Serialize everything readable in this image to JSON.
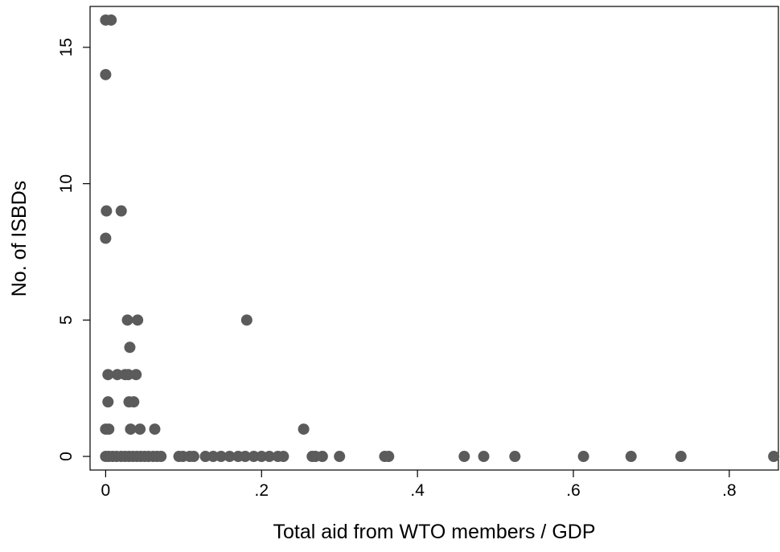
{
  "chart_data": {
    "type": "scatter",
    "x_label": "Total aid from WTO members / GDP",
    "y_label": "No. of ISBDs",
    "color": "#5b5b5b",
    "xlim": [
      -0.02,
      0.863
    ],
    "ylim": [
      -0.5,
      16.5
    ],
    "xticks": [
      0,
      {
        "value": 0.2,
        "label": ".2"
      },
      {
        "value": 0.4,
        "label": ".4"
      },
      {
        "value": 0.6,
        "label": ".6"
      },
      {
        "value": 0.8,
        "label": ".8"
      }
    ],
    "yticks": [
      0,
      5,
      10,
      15
    ],
    "x": [
      0.0,
      0.007,
      0.0,
      0.001,
      0.02,
      0.0,
      0.028,
      0.041,
      0.181,
      0.031,
      0.003,
      0.015,
      0.025,
      0.029,
      0.039,
      0.003,
      0.03,
      0.036,
      0.0,
      0.004,
      0.032,
      0.044,
      0.063,
      0.254,
      0.0,
      0.004,
      0.009,
      0.014,
      0.02,
      0.025,
      0.03,
      0.035,
      0.04,
      0.045,
      0.05,
      0.055,
      0.061,
      0.066,
      0.071,
      0.094,
      0.099,
      0.108,
      0.113,
      0.128,
      0.138,
      0.148,
      0.159,
      0.17,
      0.179,
      0.19,
      0.2,
      0.21,
      0.221,
      0.228,
      0.265,
      0.269,
      0.278,
      0.3,
      0.358,
      0.363,
      0.46,
      0.485,
      0.525,
      0.613,
      0.674,
      0.738,
      0.857
    ],
    "values": [
      16,
      16,
      14,
      9,
      9,
      8,
      5,
      5,
      5,
      4,
      3,
      3,
      3,
      3,
      3,
      2,
      2,
      2,
      1,
      1,
      1,
      1,
      1,
      1,
      0,
      0,
      0,
      0,
      0,
      0,
      0,
      0,
      0,
      0,
      0,
      0,
      0,
      0,
      0,
      0,
      0,
      0,
      0,
      0,
      0,
      0,
      0,
      0,
      0,
      0,
      0,
      0,
      0,
      0,
      0,
      0,
      0,
      0,
      0,
      0,
      0,
      0,
      0,
      0,
      0,
      0,
      0
    ]
  }
}
